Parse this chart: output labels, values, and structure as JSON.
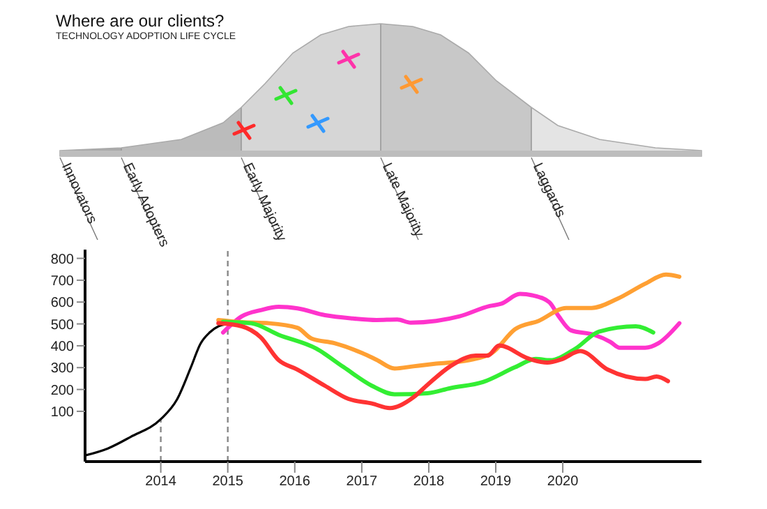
{
  "chart_data": [
    {
      "type": "other",
      "title": "Where are our clients?",
      "subtitle": "TECHNOLOGY ADOPTION LIFE CYCLE",
      "annotations": [
        "Innovators",
        "Early Adopters",
        "Early Majority",
        "Late Majority",
        "Laggards"
      ]
    },
    {
      "type": "line",
      "xlim": [
        2012.87,
        2022.07
      ],
      "xticks": [
        2014,
        2015,
        2016,
        2017,
        2018,
        2019,
        2020
      ],
      "ylim": [
        -130,
        840
      ],
      "yticks": [
        100,
        200,
        300,
        400,
        500,
        600,
        700,
        800
      ],
      "marker": "none",
      "line_style": "solid",
      "series": [
        {
          "color": "#000000",
          "x": [
            2012.87,
            2013.21,
            2013.55,
            2014,
            2014.24,
            2014.45,
            2014.59,
            2014.73,
            2014.86,
            2014.99
          ],
          "values": [
            -102,
            -70,
            -17,
            64,
            153,
            302,
            408,
            461,
            489,
            499
          ]
        },
        {
          "color": "#ff33cc",
          "x": [
            2014.93,
            2015.21,
            2015.49,
            2015.76,
            2016.04,
            2016.45,
            2016.87,
            2017.22,
            2017.53,
            2017.73,
            2018.11,
            2018.46,
            2018.91,
            2019.08,
            2019.36,
            2019.56,
            2019.8,
            2019.94,
            2020.12,
            2020.47,
            2020.71,
            2020.85,
            2021.23,
            2021.43,
            2021.74
          ],
          "values": [
            461,
            535,
            563,
            578,
            571,
            540,
            525,
            518,
            520,
            506,
            514,
            535,
            582,
            592,
            637,
            630,
            599,
            535,
            471,
            450,
            418,
            391,
            391,
            412,
            503
          ]
        },
        {
          "color": "#ffa033",
          "x": [
            2014.86,
            2015.21,
            2015.62,
            2016.04,
            2016.25,
            2016.59,
            2017.01,
            2017.22,
            2017.49,
            2017.77,
            2018.11,
            2018.6,
            2018.94,
            2019.29,
            2019.64,
            2020.05,
            2020.43,
            2020.81,
            2021.23,
            2021.54,
            2021.74
          ],
          "values": [
            518,
            508,
            503,
            482,
            433,
            412,
            366,
            336,
            296,
            306,
            318,
            334,
            366,
            476,
            514,
            573,
            573,
            614,
            684,
            726,
            716
          ]
        },
        {
          "color": "#33ee33",
          "x": [
            2014.93,
            2015.35,
            2015.76,
            2016.32,
            2016.73,
            2017.15,
            2017.49,
            2017.98,
            2018.32,
            2018.81,
            2019.29,
            2019.6,
            2019.81,
            2020.19,
            2020.54,
            2021.09,
            2021.35
          ],
          "values": [
            510,
            503,
            450,
            387,
            302,
            217,
            178,
            183,
            206,
            234,
            302,
            340,
            334,
            387,
            465,
            489,
            461
          ]
        },
        {
          "color": "#ff3333",
          "x": [
            2014.86,
            2015.21,
            2015.49,
            2015.76,
            2016.04,
            2016.45,
            2016.8,
            2017.15,
            2017.42,
            2017.77,
            2017.98,
            2018.32,
            2018.7,
            2018.88,
            2019.05,
            2019.5,
            2019.77,
            2019.98,
            2020.26,
            2020.67,
            2021.23,
            2021.4,
            2021.57
          ],
          "values": [
            503,
            489,
            439,
            334,
            291,
            217,
            157,
            136,
            115,
            164,
            221,
            306,
            355,
            355,
            401,
            340,
            323,
            338,
            376,
            291,
            248,
            259,
            238
          ]
        }
      ],
      "ref_lines": [
        {
          "axis": "x",
          "value": 2014,
          "color": "#888888",
          "line_style": "dashed"
        },
        {
          "axis": "x",
          "value": 2015,
          "color": "#888888",
          "line_style": "dashed"
        }
      ]
    }
  ]
}
